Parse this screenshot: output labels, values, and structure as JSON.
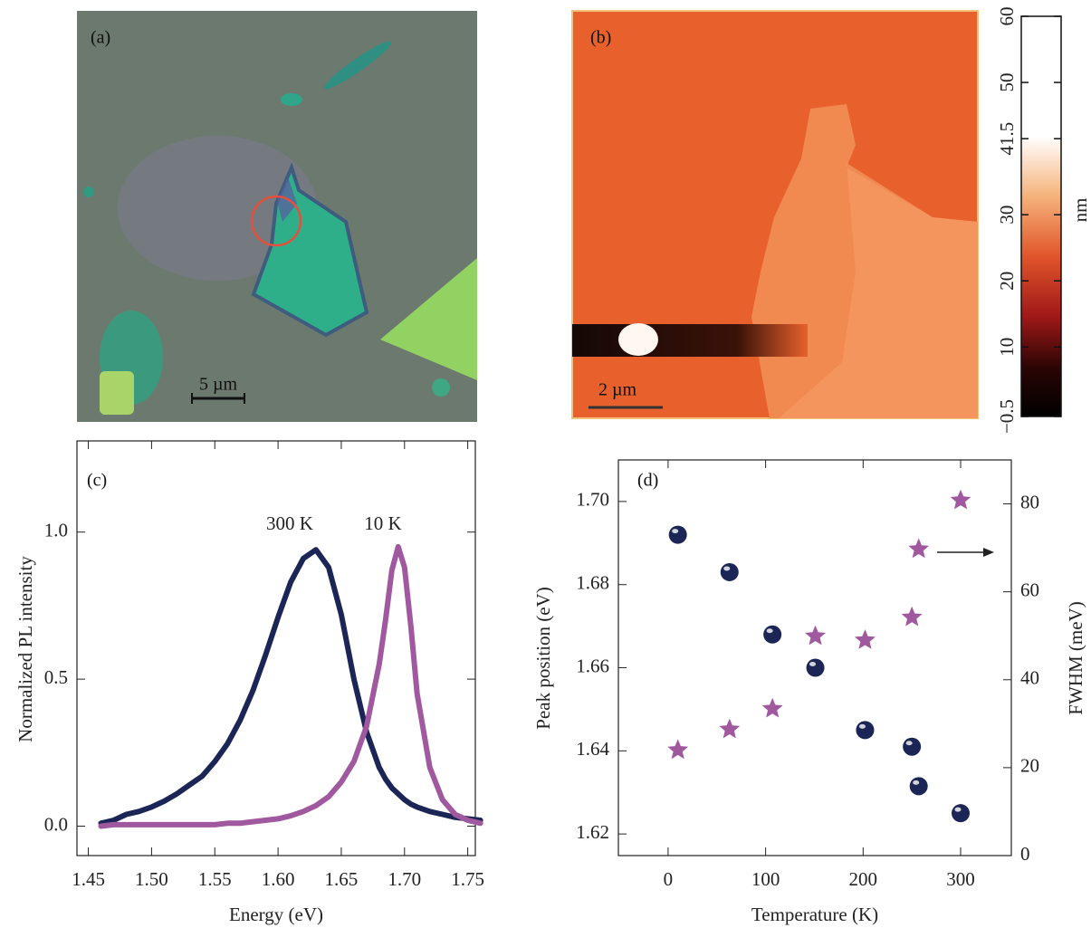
{
  "chart_data": [
    {
      "type": "image",
      "label": "(a)",
      "scale_bar": "5 µm"
    },
    {
      "type": "image",
      "label": "(b)",
      "scale_bar": "2 µm",
      "colorbar": {
        "label": "nm",
        "ylim": [
          -0.5,
          60
        ],
        "yticks": [
          60,
          50,
          41.5,
          30,
          20,
          10,
          {
            "value": -0.5,
            "label": "−0.5"
          }
        ]
      }
    },
    {
      "type": "line",
      "label": "(c)",
      "xlabel": "Energy (eV)",
      "ylabel": "Normalized PL intensity",
      "x": [
        1.46,
        1.47,
        1.48,
        1.49,
        1.5,
        1.51,
        1.52,
        1.53,
        1.54,
        1.55,
        1.56,
        1.57,
        1.58,
        1.59,
        1.6,
        1.61,
        1.62,
        1.63,
        1.64,
        1.65,
        1.66,
        1.67,
        1.68,
        1.685,
        1.69,
        1.695,
        1.7,
        1.705,
        1.71,
        1.72,
        1.73,
        1.74,
        1.75,
        1.76
      ],
      "series": [
        {
          "name": "300 K",
          "color": "#1b2656",
          "values": [
            0.01,
            0.02,
            0.04,
            0.05,
            0.065,
            0.085,
            0.11,
            0.14,
            0.17,
            0.22,
            0.28,
            0.36,
            0.46,
            0.58,
            0.71,
            0.83,
            0.91,
            0.94,
            0.88,
            0.72,
            0.5,
            0.32,
            0.2,
            0.16,
            0.13,
            0.11,
            0.09,
            0.075,
            0.065,
            0.05,
            0.04,
            0.03,
            0.025,
            0.02
          ]
        },
        {
          "name": "10 K",
          "color": "#a0589f",
          "values": [
            0.0,
            0.005,
            0.005,
            0.005,
            0.005,
            0.005,
            0.005,
            0.005,
            0.005,
            0.005,
            0.01,
            0.01,
            0.015,
            0.02,
            0.025,
            0.035,
            0.05,
            0.07,
            0.1,
            0.15,
            0.22,
            0.34,
            0.55,
            0.7,
            0.87,
            0.95,
            0.88,
            0.68,
            0.45,
            0.2,
            0.09,
            0.04,
            0.02,
            0.01
          ]
        }
      ],
      "annotations": [
        "300 K",
        "10 K"
      ],
      "xlim": [
        1.441,
        1.756
      ],
      "xticks": [
        1.45,
        {
          "value": 1.5,
          "label": "1.50"
        },
        1.55,
        {
          "value": 1.6,
          "label": "1.60"
        },
        1.65,
        {
          "value": 1.7,
          "label": "1.70"
        },
        1.75
      ],
      "ylim": [
        -0.1,
        1.31
      ],
      "yticks": [
        {
          "value": 0,
          "label": "0.0"
        },
        0.5,
        {
          "value": 1,
          "label": "1.0"
        }
      ]
    },
    {
      "type": "scatter",
      "label": "(d)",
      "xlabel": "Temperature (K)",
      "ylabel": "Peak position (eV)",
      "y2label": "FWHM (meV)",
      "x": [
        10,
        63,
        107,
        151,
        202,
        250,
        257,
        300
      ],
      "series": [
        {
          "color": "#1b2656",
          "marker": "circle",
          "values": [
            1.692,
            1.683,
            1.668,
            1.66,
            1.645,
            1.641,
            1.6315,
            1.625
          ]
        },
        {
          "color": "#a0589f",
          "marker": "star",
          "axis": "y2",
          "values": [
            24,
            28.7,
            33.4,
            49.9,
            49,
            54.2,
            69.7,
            80.8
          ]
        }
      ],
      "xlim": [
        -51,
        352
      ],
      "xticks": [
        0,
        100,
        200,
        300
      ],
      "ylim": [
        1.6148,
        1.71
      ],
      "yticks": [
        1.62,
        1.64,
        1.66,
        1.68,
        {
          "value": 1.7,
          "label": "1.70"
        }
      ],
      "y2lim": [
        0,
        90
      ],
      "y2ticks": [
        0,
        20,
        40,
        60,
        80
      ]
    }
  ]
}
